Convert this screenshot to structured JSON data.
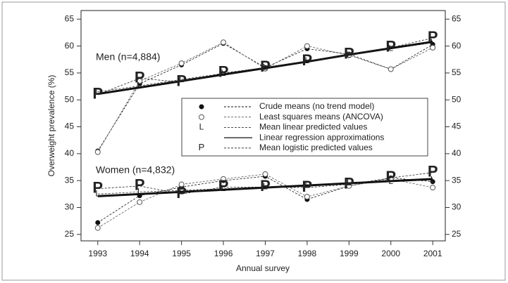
{
  "chart_data": {
    "type": "line",
    "x_label": "Annual survey",
    "y_label": "Overweight prevalence (%)",
    "x": [
      1993,
      1994,
      1995,
      1996,
      1997,
      1998,
      1999,
      2000,
      2001
    ],
    "xlim": [
      1992.6,
      2001.3
    ],
    "xticks": [
      1993,
      1994,
      1995,
      1996,
      1997,
      1998,
      1999,
      2000,
      2001
    ],
    "ylim": [
      23.8,
      66.6
    ],
    "yticks": [
      25,
      30,
      35,
      40,
      45,
      50,
      55,
      60,
      65
    ],
    "right_axis": true,
    "groups": [
      "Men (n=4,884)",
      "Women (n=4,832)"
    ],
    "series": [
      {
        "name": "Crude means (no trend model)",
        "marker": "dot",
        "line": "dashed",
        "color": "#111",
        "values": [
          [
            40.5,
            53.0,
            56.5,
            60.5,
            56.0,
            59.5,
            58.5,
            55.7,
            60.3
          ],
          [
            27.2,
            32.2,
            33.8,
            35.0,
            35.8,
            31.5,
            34.0,
            35.5,
            34.8
          ]
        ]
      },
      {
        "name": "Least squares means (ANCOVA)",
        "marker": "circle",
        "line": "dashed",
        "color": "#555",
        "values": [
          [
            40.3,
            53.5,
            56.8,
            60.7,
            55.8,
            60.0,
            58.3,
            55.7,
            59.7
          ],
          [
            26.2,
            31.0,
            34.3,
            35.3,
            36.2,
            32.0,
            34.0,
            35.3,
            33.7
          ]
        ]
      },
      {
        "name": "Mean linear predicted values",
        "marker": "L",
        "line": "dashed",
        "color": "#333",
        "values": [
          [
            51.5,
            52.6,
            53.8,
            54.9,
            56.0,
            57.2,
            58.3,
            59.5,
            60.6
          ],
          [
            32.5,
            32.9,
            33.2,
            33.5,
            33.8,
            34.2,
            34.5,
            34.8,
            35.1
          ]
        ]
      },
      {
        "name": "Linear regression approximations",
        "marker": "none",
        "line": "solid",
        "color": "#111",
        "values": [
          [
            51.1,
            52.3,
            53.5,
            54.7,
            55.9,
            57.1,
            58.4,
            59.6,
            60.8
          ],
          [
            32.1,
            32.5,
            32.9,
            33.3,
            33.7,
            34.1,
            34.5,
            34.9,
            35.3
          ]
        ]
      },
      {
        "name": "Mean logistic predicted values",
        "marker": "P",
        "line": "dashed",
        "color": "#222",
        "values": [
          [
            51.0,
            54.0,
            53.3,
            55.0,
            56.0,
            57.2,
            58.4,
            59.7,
            61.5
          ],
          [
            33.5,
            34.0,
            32.5,
            33.8,
            33.8,
            33.7,
            34.3,
            35.5,
            36.5
          ]
        ]
      }
    ]
  }
}
